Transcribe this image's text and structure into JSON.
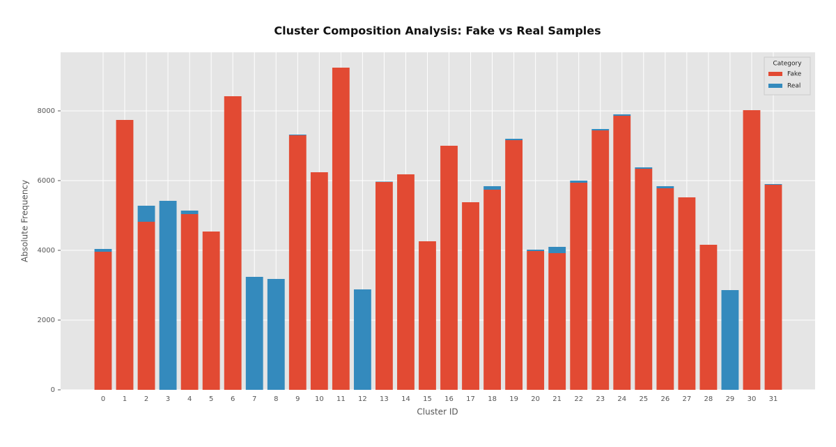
{
  "chart_data": {
    "type": "stacked_bar",
    "title": "Cluster Composition Analysis: Fake vs Real Samples",
    "x_label": "Cluster ID",
    "y_label": "Absolute Frequency",
    "legend_title": "Category",
    "legend_position": "upper right",
    "grid": true,
    "categories": [
      "0",
      "1",
      "2",
      "3",
      "4",
      "5",
      "6",
      "7",
      "8",
      "9",
      "10",
      "11",
      "12",
      "13",
      "14",
      "15",
      "16",
      "17",
      "18",
      "19",
      "20",
      "21",
      "22",
      "23",
      "24",
      "25",
      "26",
      "27",
      "28",
      "29",
      "30",
      "31"
    ],
    "series": [
      {
        "name": "Fake",
        "color": "#E24A33",
        "values": [
          3960,
          7740,
          4820,
          0,
          5040,
          4540,
          8420,
          0,
          0,
          7300,
          6240,
          9240,
          0,
          5960,
          6180,
          4260,
          7000,
          5380,
          5740,
          7160,
          3980,
          3920,
          5940,
          7440,
          7860,
          6340,
          5780,
          5520,
          4160,
          0,
          8020,
          5880
        ]
      },
      {
        "name": "Real",
        "color": "#348ABD",
        "values": [
          80,
          0,
          460,
          5420,
          100,
          0,
          0,
          3240,
          3180,
          20,
          0,
          0,
          2880,
          10,
          0,
          0,
          0,
          0,
          100,
          40,
          40,
          180,
          60,
          40,
          40,
          40,
          60,
          0,
          0,
          2860,
          0,
          20
        ]
      }
    ],
    "ylim": [
      0,
      9680
    ],
    "yticks": [
      0,
      2000,
      4000,
      6000,
      8000
    ]
  }
}
